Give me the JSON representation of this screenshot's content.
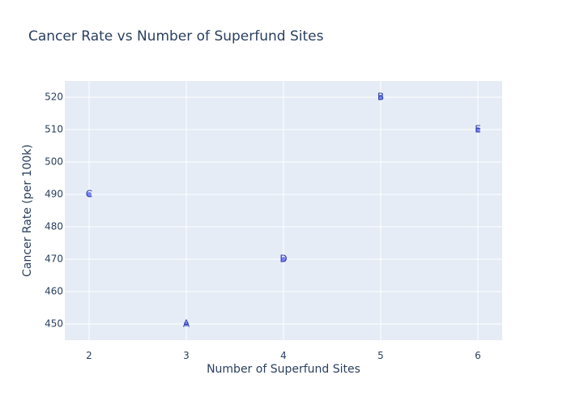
{
  "colors": {
    "plot_bg": "#e5ecf6",
    "grid": "#ffffff",
    "text": "#2a3f5f",
    "marker": "#636efa",
    "label": "#3341a8"
  },
  "chart_data": {
    "type": "scatter",
    "title": "Cancer Rate vs Number of Superfund Sites",
    "xlabel": "Number of Superfund Sites",
    "ylabel": "Cancer Rate (per 100k)",
    "xlim": [
      1.75,
      6.25
    ],
    "ylim": [
      445,
      525
    ],
    "xticks": [
      2,
      3,
      4,
      5,
      6
    ],
    "yticks": [
      450,
      460,
      470,
      480,
      490,
      500,
      510,
      520
    ],
    "grid": true,
    "legend": "none",
    "points": [
      {
        "label": "A",
        "x": 3,
        "y": 450
      },
      {
        "label": "B",
        "x": 5,
        "y": 520
      },
      {
        "label": "C",
        "x": 2,
        "y": 490
      },
      {
        "label": "D",
        "x": 4,
        "y": 470
      },
      {
        "label": "E",
        "x": 6,
        "y": 510
      }
    ]
  }
}
